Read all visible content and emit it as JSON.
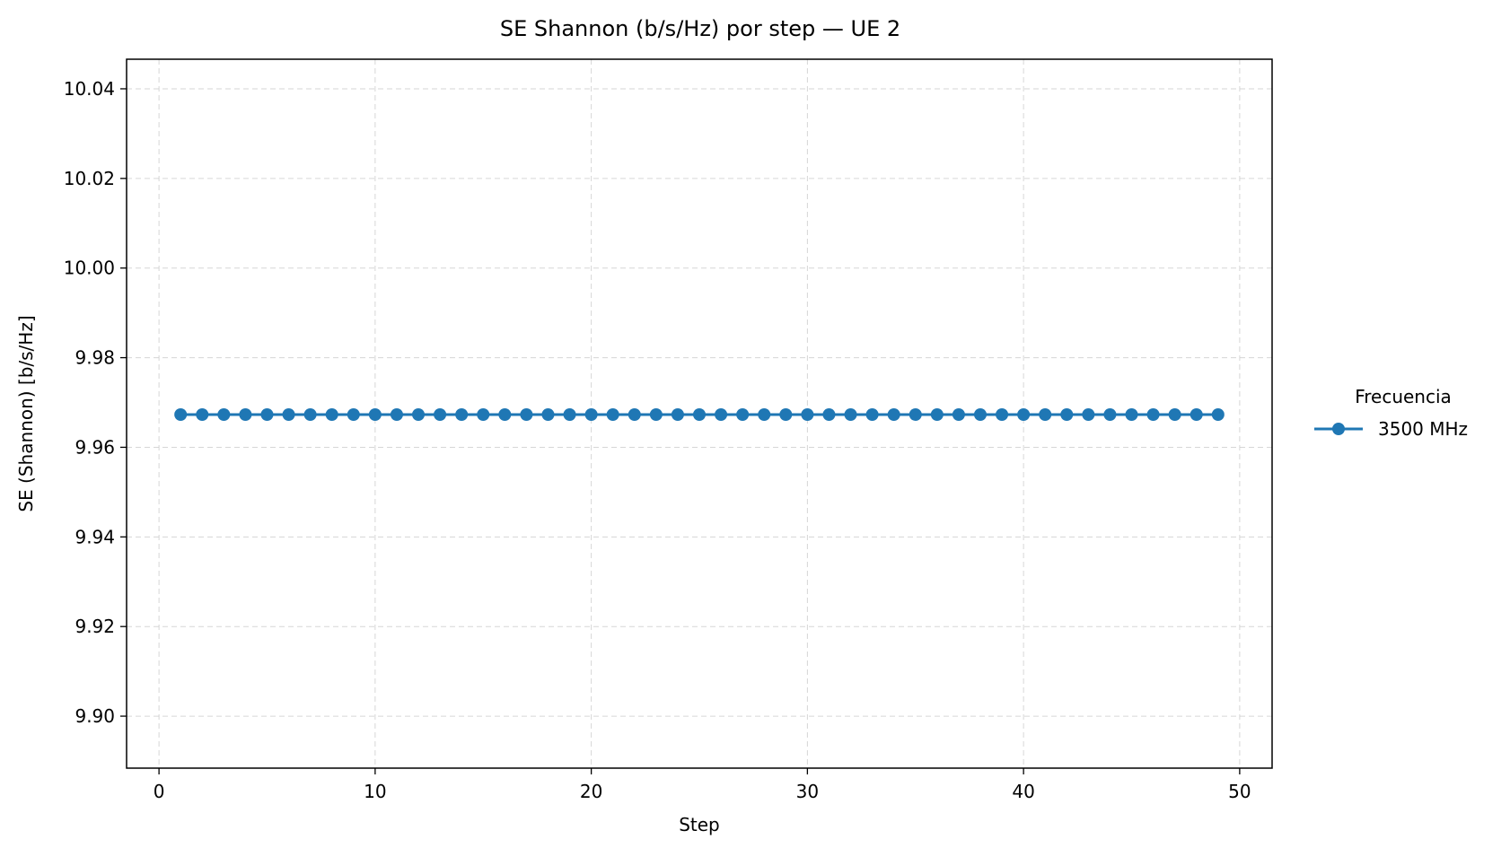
{
  "chart_data": {
    "type": "line",
    "title": "SE Shannon (b/s/Hz) por step — UE 2",
    "xlabel": "Step",
    "ylabel": "SE (Shannon) [b/s/Hz]",
    "xlim": [
      -1.5,
      51.5
    ],
    "ylim": [
      9.8884,
      10.0466
    ],
    "xticks": [
      0,
      10,
      20,
      30,
      40,
      50
    ],
    "xtick_labels": [
      "0",
      "10",
      "20",
      "30",
      "40",
      "50"
    ],
    "yticks": [
      9.9,
      9.92,
      9.94,
      9.96,
      9.98,
      10.0,
      10.02,
      10.04
    ],
    "ytick_labels": [
      "9.90",
      "9.92",
      "9.94",
      "9.96",
      "9.98",
      "10.00",
      "10.02",
      "10.04"
    ],
    "grid": true,
    "legend": {
      "title": "Frecuencia",
      "placement": "right-outside"
    },
    "x": [
      1,
      2,
      3,
      4,
      5,
      6,
      7,
      8,
      9,
      10,
      11,
      12,
      13,
      14,
      15,
      16,
      17,
      18,
      19,
      20,
      21,
      22,
      23,
      24,
      25,
      26,
      27,
      28,
      29,
      30,
      31,
      32,
      33,
      34,
      35,
      36,
      37,
      38,
      39,
      40,
      41,
      42,
      43,
      44,
      45,
      46,
      47,
      48,
      49
    ],
    "series": [
      {
        "name": "3500 MHz",
        "color": "#1f77b4",
        "marker": "circle",
        "values": [
          9.9673,
          9.9673,
          9.9673,
          9.9673,
          9.9673,
          9.9673,
          9.9673,
          9.9673,
          9.9673,
          9.9673,
          9.9673,
          9.9673,
          9.9673,
          9.9673,
          9.9673,
          9.9673,
          9.9673,
          9.9673,
          9.9673,
          9.9673,
          9.9673,
          9.9673,
          9.9673,
          9.9673,
          9.9673,
          9.9673,
          9.9673,
          9.9673,
          9.9673,
          9.9673,
          9.9673,
          9.9673,
          9.9673,
          9.9673,
          9.9673,
          9.9673,
          9.9673,
          9.9673,
          9.9673,
          9.9673,
          9.9673,
          9.9673,
          9.9673,
          9.9673,
          9.9673,
          9.9673,
          9.9673,
          9.9673,
          9.9673
        ]
      }
    ]
  }
}
